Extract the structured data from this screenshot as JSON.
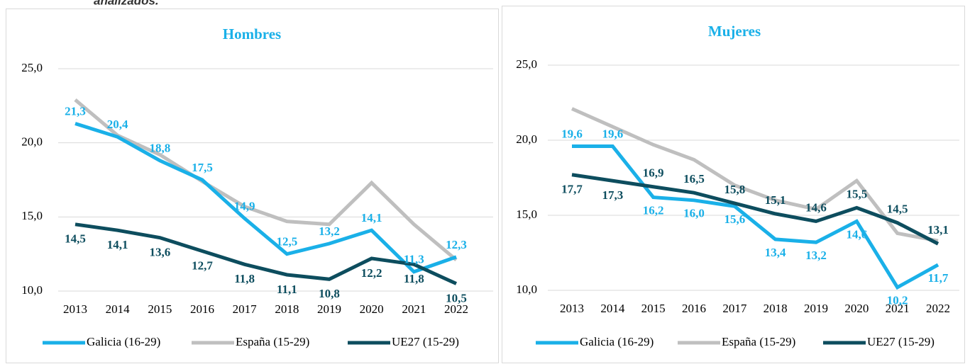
{
  "caption": "analizados.",
  "chart_data": [
    {
      "type": "line",
      "title": "Hombres",
      "categories": [
        "2013",
        "2014",
        "2015",
        "2016",
        "2017",
        "2018",
        "2019",
        "2020",
        "2021",
        "2022"
      ],
      "ylim": [
        10,
        25
      ],
      "yticks": [
        {
          "value": 10,
          "label": "10,0"
        },
        {
          "value": 15,
          "label": "15,0"
        },
        {
          "value": 20,
          "label": "20,0"
        },
        {
          "value": 25,
          "label": "25,0"
        }
      ],
      "grid": true,
      "series": [
        {
          "name": "Galicia (16-29)",
          "color": "#1ab0e8",
          "values": [
            21.3,
            20.4,
            18.8,
            17.5,
            14.9,
            12.5,
            13.2,
            14.1,
            11.3,
            12.3
          ],
          "value_labels": [
            "21,3",
            "20,4",
            "18,8",
            "17,5",
            "14,9",
            "12,5",
            "13,2",
            "14,1",
            "11,3",
            "12,3"
          ]
        },
        {
          "name": "España (15-29)",
          "color": "#bfbfbf",
          "values": [
            22.9,
            20.5,
            19.2,
            17.4,
            15.7,
            14.7,
            14.5,
            17.3,
            14.5,
            12.1
          ]
        },
        {
          "name": "UE27 (15-29)",
          "color": "#0d4d5e",
          "values": [
            14.5,
            14.1,
            13.6,
            12.7,
            11.8,
            11.1,
            10.8,
            12.2,
            11.8,
            10.5
          ],
          "value_labels": [
            "14,5",
            "14,1",
            "13,6",
            "12,7",
            "11,8",
            "11,1",
            "10,8",
            "12,2",
            "11,8",
            "10,5"
          ]
        }
      ]
    },
    {
      "type": "line",
      "title": "Mujeres",
      "categories": [
        "2013",
        "2014",
        "2015",
        "2016",
        "2017",
        "2018",
        "2019",
        "2020",
        "2021",
        "2022"
      ],
      "ylim": [
        10,
        25
      ],
      "yticks": [
        {
          "value": 10,
          "label": "10,0"
        },
        {
          "value": 15,
          "label": "15,0"
        },
        {
          "value": 20,
          "label": "20,0"
        },
        {
          "value": 25,
          "label": "25,0"
        }
      ],
      "grid": true,
      "series": [
        {
          "name": "Galicia (16-29)",
          "color": "#1ab0e8",
          "values": [
            19.6,
            19.6,
            16.2,
            16.0,
            15.6,
            13.4,
            13.2,
            14.6,
            10.2,
            11.7
          ],
          "value_labels": [
            "19,6",
            "19,6",
            "16,2",
            "16,0",
            "15,6",
            "13,4",
            "13,2",
            "14,6",
            "10,2",
            "11,7"
          ]
        },
        {
          "name": "España (15-29)",
          "color": "#bfbfbf",
          "values": [
            22.1,
            20.9,
            19.7,
            18.7,
            17.0,
            16.0,
            15.4,
            17.3,
            13.8,
            13.3
          ]
        },
        {
          "name": "UE27 (15-29)",
          "color": "#0d4d5e",
          "values": [
            17.7,
            17.3,
            16.9,
            16.5,
            15.8,
            15.1,
            14.6,
            15.5,
            14.5,
            13.1
          ],
          "value_labels": [
            "17,7",
            "17,3",
            "16,9",
            "16,5",
            "15,8",
            "15,1",
            "14,6",
            "15,5",
            "14,5",
            "13,1"
          ]
        }
      ]
    }
  ]
}
